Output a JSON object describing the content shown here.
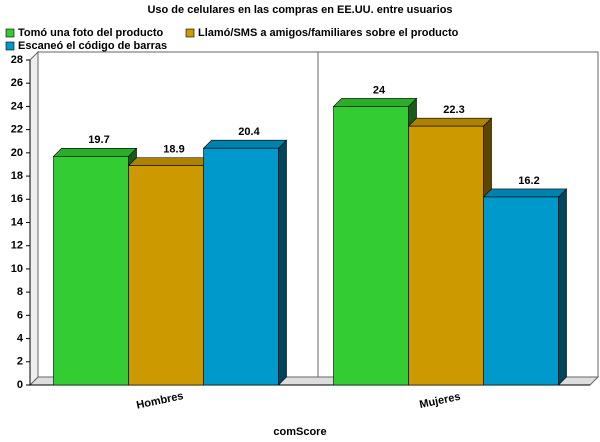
{
  "chart_data": {
    "type": "bar3d",
    "title": "Uso de celulares en las compras en EE.UU. entre usuarios",
    "x_label": "comScore",
    "categories": [
      "Hombres",
      "Mujeres"
    ],
    "series": [
      {
        "name": "Tomó una foto del producto",
        "color": "#33cc33",
        "values": [
          19.7,
          24
        ]
      },
      {
        "name": "Llamó/SMS a amigos/familiares sobre el producto",
        "color": "#cc9900",
        "values": [
          18.9,
          22.3
        ]
      },
      {
        "name": "Escaneó el código de barras",
        "color": "#0099cc",
        "values": [
          20.4,
          16.2
        ]
      }
    ],
    "ylim": [
      0,
      28
    ],
    "yticks": [
      0,
      2,
      4,
      6,
      8,
      10,
      12,
      14,
      16,
      18,
      20,
      22,
      24,
      26,
      28
    ]
  }
}
